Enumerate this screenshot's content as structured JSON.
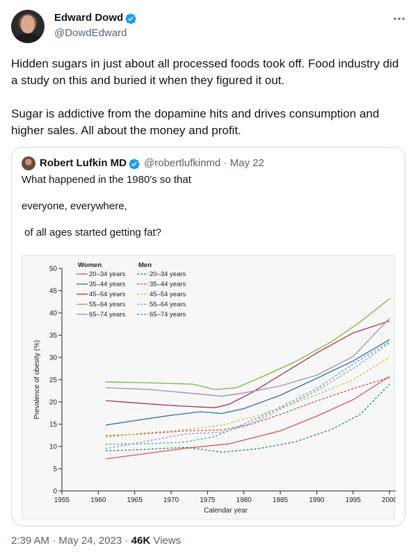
{
  "author": {
    "name": "Edward Dowd",
    "handle": "@DowdEdward",
    "verified_color": "#1d9bf0"
  },
  "more_icon": "more-horizontal-icon",
  "tweet_text": [
    "Hidden sugars in just about all processed foods took off. Food industry did a study on this and buried it when they figured it out.",
    "Sugar is addictive from the dopamine hits and drives consumption and higher sales. All about the money and profit."
  ],
  "quote": {
    "name": "Robert Lufkin MD",
    "handle": "@robertlufkinmd",
    "separator": "·",
    "date": "May 22",
    "lines": [
      "What happened in the 1980's so that",
      "everyone, everywhere,",
      " of all ages started getting fat?"
    ]
  },
  "chart_data": {
    "type": "line",
    "xlabel": "Calendar year",
    "ylabel": "Prevalence of obesity (%)",
    "xlim": [
      1955,
      2000
    ],
    "ylim": [
      0,
      50
    ],
    "xticks": [
      1955,
      1960,
      1965,
      1970,
      1975,
      1980,
      1985,
      1990,
      1995,
      2000
    ],
    "yticks": [
      0,
      5,
      10,
      15,
      20,
      25,
      30,
      35,
      40,
      45,
      50
    ],
    "legend": {
      "placement": "top-left",
      "groups": [
        {
          "title": "Women",
          "style": "solid"
        },
        {
          "title": "Men",
          "style": "dashed"
        }
      ]
    },
    "series": [
      {
        "name": "20–34 years",
        "group": "Women",
        "dash": false,
        "color": "#d9534f",
        "points": [
          [
            1961,
            7.2
          ],
          [
            1967,
            8.5
          ],
          [
            1972,
            9.6
          ],
          [
            1978,
            10.6
          ],
          [
            1985,
            13.5
          ],
          [
            1990,
            16.8
          ],
          [
            1995,
            20.5
          ],
          [
            2000,
            25.7
          ]
        ]
      },
      {
        "name": "35–44 years",
        "group": "Women",
        "dash": false,
        "color": "#2e6da4",
        "points": [
          [
            1961,
            14.8
          ],
          [
            1965,
            15.8
          ],
          [
            1970,
            17.0
          ],
          [
            1974,
            17.8
          ],
          [
            1977,
            17.4
          ],
          [
            1980,
            18.5
          ],
          [
            1985,
            21.5
          ],
          [
            1990,
            25.3
          ],
          [
            1995,
            29.2
          ],
          [
            2000,
            34.0
          ]
        ]
      },
      {
        "name": "45–54 years",
        "group": "Women",
        "dash": false,
        "color": "#a8324a",
        "points": [
          [
            1961,
            20.3
          ],
          [
            1965,
            19.8
          ],
          [
            1970,
            19.2
          ],
          [
            1976,
            18.7
          ],
          [
            1978,
            19.5
          ],
          [
            1981,
            22.0
          ],
          [
            1985,
            26.0
          ],
          [
            1990,
            31.0
          ],
          [
            1995,
            35.5
          ],
          [
            2000,
            38.2
          ]
        ]
      },
      {
        "name": "55–64 years",
        "group": "Women",
        "dash": false,
        "color": "#7cb342",
        "points": [
          [
            1961,
            24.5
          ],
          [
            1967,
            24.3
          ],
          [
            1973,
            24.0
          ],
          [
            1976,
            22.8
          ],
          [
            1979,
            23.2
          ],
          [
            1983,
            26.0
          ],
          [
            1987,
            29.0
          ],
          [
            1992,
            33.5
          ],
          [
            1996,
            38.0
          ],
          [
            2000,
            43.2
          ]
        ]
      },
      {
        "name": "65–74 years",
        "group": "Women",
        "dash": false,
        "color": "#9e8fb0",
        "points": [
          [
            1961,
            23.2
          ],
          [
            1967,
            22.8
          ],
          [
            1973,
            21.9
          ],
          [
            1977,
            21.3
          ],
          [
            1980,
            22.0
          ],
          [
            1985,
            23.6
          ],
          [
            1990,
            26.0
          ],
          [
            1995,
            30.2
          ],
          [
            2000,
            38.8
          ]
        ]
      },
      {
        "name": "20–34 years",
        "group": "Men",
        "dash": true,
        "color": "#2a7c6f",
        "points": [
          [
            1961,
            9.0
          ],
          [
            1966,
            9.3
          ],
          [
            1972,
            9.8
          ],
          [
            1977,
            8.7
          ],
          [
            1982,
            9.5
          ],
          [
            1987,
            11.0
          ],
          [
            1992,
            13.8
          ],
          [
            1996,
            17.2
          ],
          [
            2000,
            24.0
          ]
        ]
      },
      {
        "name": "35–44 years",
        "group": "Men",
        "dash": true,
        "color": "#c7404a",
        "points": [
          [
            1961,
            12.4
          ],
          [
            1966,
            12.8
          ],
          [
            1972,
            13.5
          ],
          [
            1977,
            13.7
          ],
          [
            1981,
            15.0
          ],
          [
            1985,
            17.2
          ],
          [
            1990,
            20.2
          ],
          [
            1995,
            23.0
          ],
          [
            2000,
            25.5
          ]
        ]
      },
      {
        "name": "45–54 years",
        "group": "Men",
        "dash": true,
        "color": "#b7c93f",
        "points": [
          [
            1961,
            12.0
          ],
          [
            1966,
            13.0
          ],
          [
            1972,
            13.8
          ],
          [
            1977,
            14.8
          ],
          [
            1982,
            17.0
          ],
          [
            1986,
            19.2
          ],
          [
            1990,
            21.6
          ],
          [
            1995,
            25.0
          ],
          [
            2000,
            30.0
          ]
        ]
      },
      {
        "name": "55–64 years",
        "group": "Men",
        "dash": true,
        "color": "#9a8cc2",
        "points": [
          [
            1961,
            9.5
          ],
          [
            1966,
            11.0
          ],
          [
            1972,
            12.8
          ],
          [
            1977,
            13.2
          ],
          [
            1980,
            14.5
          ],
          [
            1984,
            17.5
          ],
          [
            1990,
            22.5
          ],
          [
            1995,
            27.5
          ],
          [
            2000,
            33.2
          ]
        ]
      },
      {
        "name": "65–74 years",
        "group": "Men",
        "dash": true,
        "color": "#4aa3a8",
        "points": [
          [
            1961,
            10.5
          ],
          [
            1967,
            10.6
          ],
          [
            1972,
            11.0
          ],
          [
            1976,
            12.2
          ],
          [
            1979,
            14.3
          ],
          [
            1984,
            18.0
          ],
          [
            1990,
            23.0
          ],
          [
            1995,
            28.5
          ],
          [
            2000,
            33.5
          ]
        ]
      }
    ]
  },
  "meta": {
    "time": "2:39 AM",
    "sep1": "·",
    "date": "May 24, 2023",
    "sep2": "·",
    "views_count": "46K",
    "views_label": "Views"
  }
}
